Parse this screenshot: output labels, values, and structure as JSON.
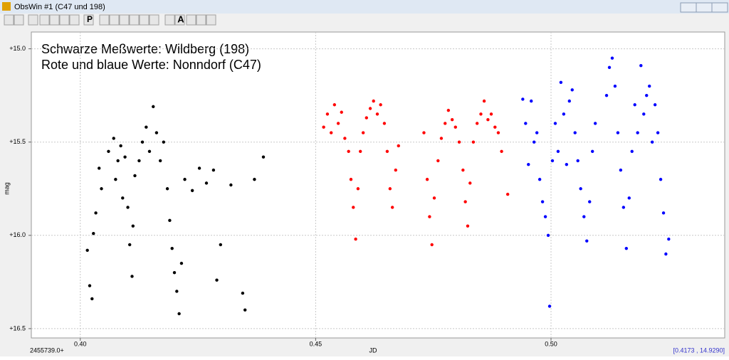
{
  "window": {
    "title": "ObsWin #1 (C47 und 198)"
  },
  "toolbar": {
    "buttons": [
      "P",
      "A"
    ]
  },
  "chart_data": {
    "type": "scatter",
    "annotations": [
      "Schwarze Meßwerte: Wildberg (198)",
      "Rote und blaue Werte: Nonndorf (C47)"
    ],
    "xlabel": "JD",
    "ylabel": "mag",
    "x_offset_label": "2455739.0+",
    "cursor_readout": "[0.4173 , 14.9290]",
    "xlim": [
      0.3896,
      0.5369
    ],
    "ylim": [
      16.55,
      14.91
    ],
    "xticks": [
      {
        "value": 0.4,
        "label": "0.40"
      },
      0.45,
      {
        "value": 0.5,
        "label": "0.50"
      }
    ],
    "yticks": [
      {
        "value": 15.0,
        "label": "+15.0"
      },
      {
        "value": 15.5,
        "label": "+15.5"
      },
      {
        "value": 16.0,
        "label": "+16.0"
      },
      {
        "value": 16.5,
        "label": "+16.5"
      }
    ],
    "grid": true,
    "series": [
      {
        "color": "#000000",
        "x": [
          0.4015,
          0.402,
          0.4025,
          0.4028,
          0.4033,
          0.404,
          0.4045,
          0.406,
          0.4071,
          0.4075,
          0.408,
          0.4086,
          0.409,
          0.4095,
          0.4101,
          0.4105,
          0.411,
          0.4112,
          0.4116,
          0.4125,
          0.4132,
          0.414,
          0.4147,
          0.4155,
          0.4162,
          0.417,
          0.4177,
          0.4185,
          0.419,
          0.4195,
          0.42,
          0.4205,
          0.421,
          0.4215,
          0.4222,
          0.4238,
          0.4253,
          0.4268,
          0.4283,
          0.429,
          0.4298,
          0.432,
          0.4345,
          0.435,
          0.437,
          0.4389
        ],
        "values": [
          16.08,
          16.27,
          16.34,
          15.99,
          15.88,
          15.64,
          15.75,
          15.55,
          15.48,
          15.7,
          15.6,
          15.52,
          15.8,
          15.58,
          15.85,
          16.05,
          16.22,
          15.95,
          15.68,
          15.6,
          15.5,
          15.42,
          15.55,
          15.31,
          15.45,
          15.6,
          15.5,
          15.75,
          15.92,
          16.07,
          16.2,
          16.3,
          16.42,
          16.15,
          15.7,
          15.76,
          15.64,
          15.72,
          15.65,
          16.24,
          16.05,
          15.73,
          16.31,
          16.4,
          15.7,
          15.58
        ]
      },
      {
        "color": "#ff0000",
        "x": [
          0.4517,
          0.4525,
          0.4533,
          0.454,
          0.4548,
          0.4555,
          0.4562,
          0.457,
          0.4575,
          0.458,
          0.4585,
          0.459,
          0.4595,
          0.4601,
          0.4608,
          0.4616,
          0.4623,
          0.4631,
          0.4638,
          0.4646,
          0.4652,
          0.4658,
          0.4663,
          0.467,
          0.4676,
          0.473,
          0.4737,
          0.4742,
          0.4747,
          0.4752,
          0.476,
          0.4767,
          0.4775,
          0.4782,
          0.479,
          0.4797,
          0.4805,
          0.4813,
          0.4818,
          0.4823,
          0.4828,
          0.4835,
          0.4843,
          0.4851,
          0.4858,
          0.4866,
          0.4873,
          0.4881,
          0.4888,
          0.4895,
          0.4908
        ],
        "values": [
          15.42,
          15.35,
          15.45,
          15.3,
          15.4,
          15.34,
          15.48,
          15.55,
          15.7,
          15.85,
          16.02,
          15.75,
          15.55,
          15.45,
          15.37,
          15.32,
          15.28,
          15.35,
          15.3,
          15.4,
          15.55,
          15.75,
          15.85,
          15.65,
          15.52,
          15.45,
          15.7,
          15.9,
          16.05,
          15.8,
          15.6,
          15.48,
          15.4,
          15.33,
          15.38,
          15.42,
          15.5,
          15.65,
          15.82,
          15.95,
          15.72,
          15.5,
          15.4,
          15.35,
          15.28,
          15.38,
          15.35,
          15.42,
          15.45,
          15.55,
          15.78
        ]
      },
      {
        "color": "#0000ff",
        "x": [
          0.494,
          0.4946,
          0.4952,
          0.4958,
          0.4964,
          0.497,
          0.4976,
          0.4982,
          0.4988,
          0.4994,
          0.4997,
          0.5003,
          0.5009,
          0.5015,
          0.5021,
          0.5027,
          0.5033,
          0.5039,
          0.5045,
          0.5051,
          0.5057,
          0.5063,
          0.507,
          0.5076,
          0.5082,
          0.5088,
          0.5094,
          0.5118,
          0.5124,
          0.513,
          0.5136,
          0.5142,
          0.5148,
          0.5154,
          0.516,
          0.5166,
          0.5172,
          0.5178,
          0.5184,
          0.5191,
          0.5197,
          0.5203,
          0.5209,
          0.5215,
          0.5221,
          0.5227,
          0.5233,
          0.5239,
          0.5244,
          0.525
        ],
        "values": [
          15.27,
          15.4,
          15.62,
          15.28,
          15.5,
          15.45,
          15.7,
          15.82,
          15.9,
          16.0,
          16.38,
          15.6,
          15.4,
          15.55,
          15.18,
          15.35,
          15.62,
          15.28,
          15.22,
          15.45,
          15.6,
          15.75,
          15.9,
          16.03,
          15.82,
          15.55,
          15.4,
          15.25,
          15.1,
          15.05,
          15.2,
          15.45,
          15.65,
          15.85,
          16.07,
          15.8,
          15.55,
          15.3,
          15.45,
          15.09,
          15.35,
          15.25,
          15.2,
          15.5,
          15.3,
          15.45,
          15.7,
          15.88,
          16.1,
          16.02
        ]
      }
    ]
  }
}
